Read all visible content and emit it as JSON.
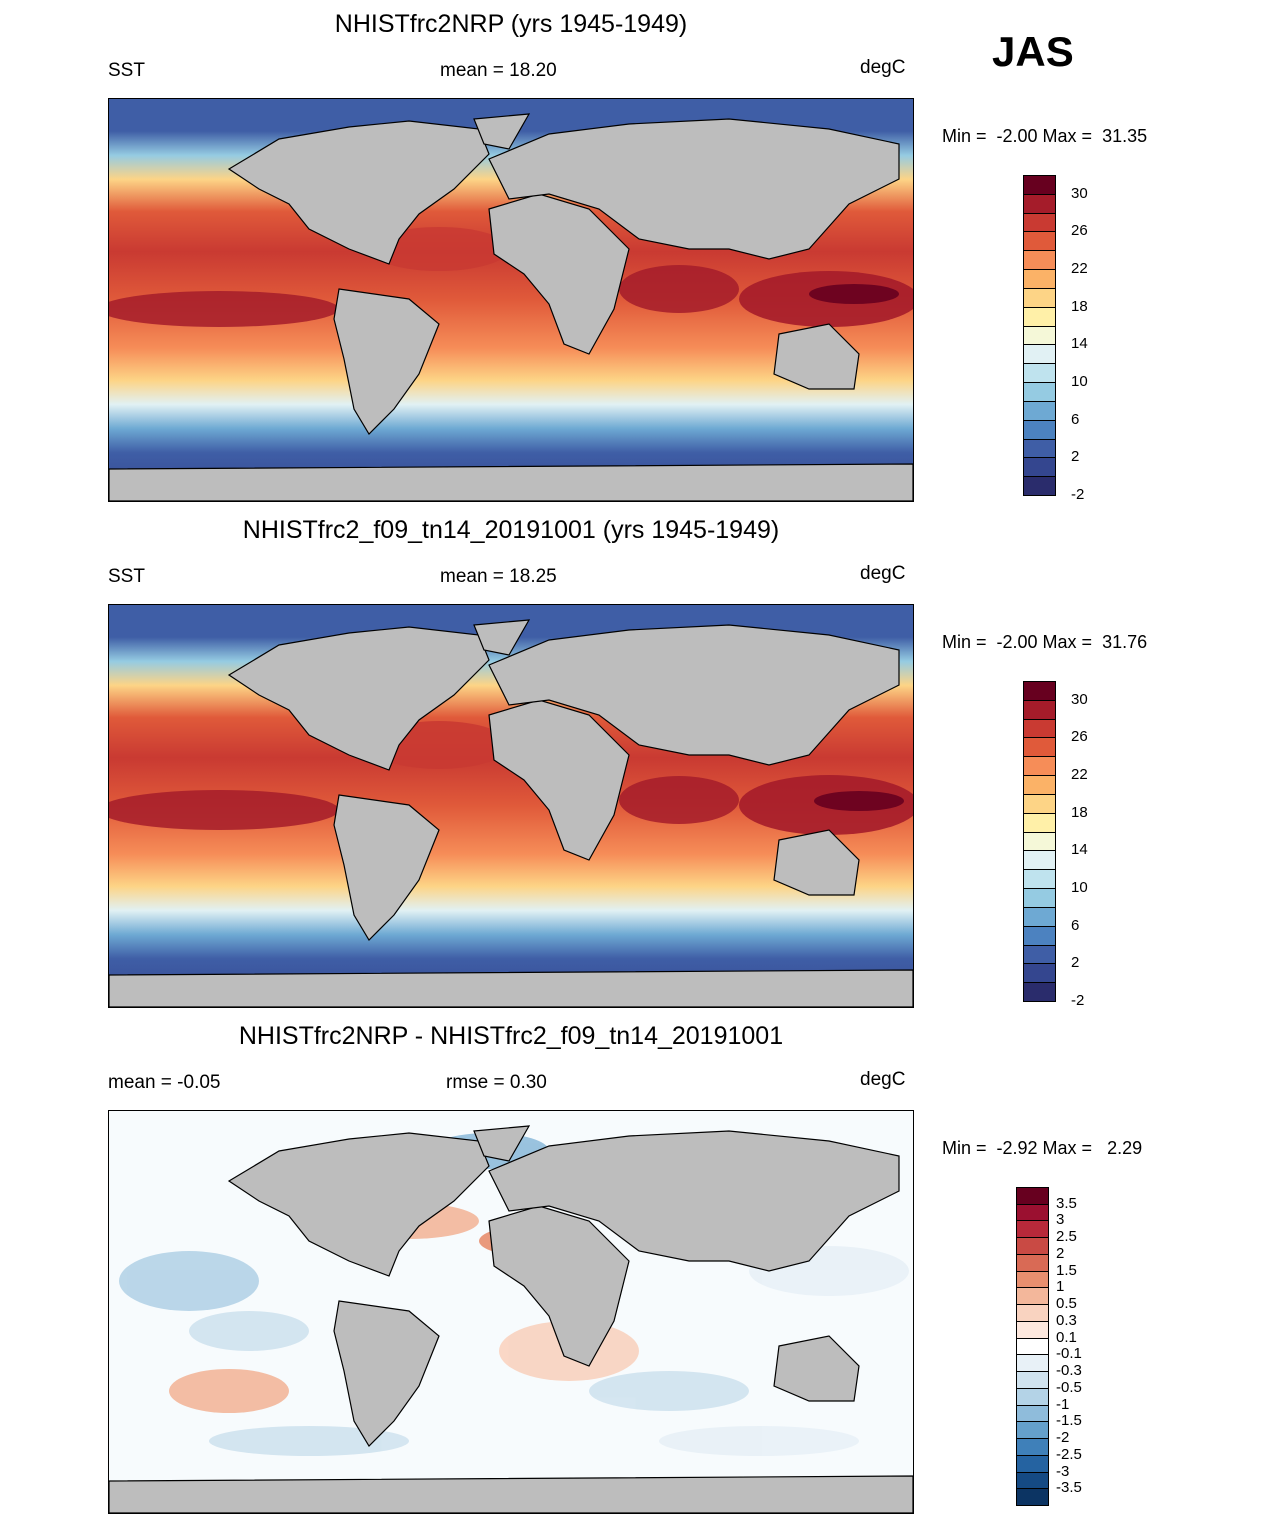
{
  "season": "JAS",
  "panels": [
    {
      "title": "NHISTfrc2NRP (yrs 1945-1949)",
      "left_label": "SST",
      "center_label": "mean =  18.20",
      "right_label": "degC",
      "minmax": "Min =  -2.00 Max =  31.35",
      "colorbar": {
        "labels": [
          "30",
          "26",
          "22",
          "18",
          "14",
          "10",
          "6",
          "2",
          "-2"
        ],
        "colors": [
          "#67001f",
          "#a51c2a",
          "#c93a32",
          "#e05a3a",
          "#f68d58",
          "#fbb267",
          "#fdd486",
          "#fff0a8",
          "#f5f8d8",
          "#e1f1f4",
          "#bfe3ee",
          "#95cbe2",
          "#6ea9d3",
          "#4c82c0",
          "#3f5ea6",
          "#34468f",
          "#2a2c6c"
        ]
      }
    },
    {
      "title": "NHISTfrc2_f09_tn14_20191001 (yrs 1945-1949)",
      "left_label": "SST",
      "center_label": "mean =  18.25",
      "right_label": "degC",
      "minmax": "Min =  -2.00 Max =  31.76",
      "colorbar": {
        "labels": [
          "30",
          "26",
          "22",
          "18",
          "14",
          "10",
          "6",
          "2",
          "-2"
        ],
        "colors": [
          "#67001f",
          "#a51c2a",
          "#c93a32",
          "#e05a3a",
          "#f68d58",
          "#fbb267",
          "#fdd486",
          "#fff0a8",
          "#f5f8d8",
          "#e1f1f4",
          "#bfe3ee",
          "#95cbe2",
          "#6ea9d3",
          "#4c82c0",
          "#3f5ea6",
          "#34468f",
          "#2a2c6c"
        ]
      }
    },
    {
      "title": "NHISTfrc2NRP - NHISTfrc2_f09_tn14_20191001",
      "left_label": "mean =  -0.05",
      "center_label": "rmse =   0.30",
      "right_label": "degC",
      "minmax": "Min =  -2.92 Max =   2.29",
      "colorbar": {
        "labels": [
          "3.5",
          "3",
          "2.5",
          "2",
          "1.5",
          "1",
          "0.5",
          "0.3",
          "0.1",
          "-0.1",
          "-0.3",
          "-0.5",
          "-1",
          "-1.5",
          "-2",
          "-2.5",
          "-3",
          "-3.5"
        ],
        "colors": [
          "#67001f",
          "#9b1030",
          "#b8293a",
          "#c94a44",
          "#d96a55",
          "#e88f6f",
          "#f3b79b",
          "#f9d3c0",
          "#fde8de",
          "#ffffff",
          "#e8f1f7",
          "#d0e3ef",
          "#b4d3e7",
          "#8fbcdb",
          "#65a0cb",
          "#3f80b9",
          "#2563a1",
          "#154a84",
          "#0c3463"
        ]
      }
    }
  ]
}
